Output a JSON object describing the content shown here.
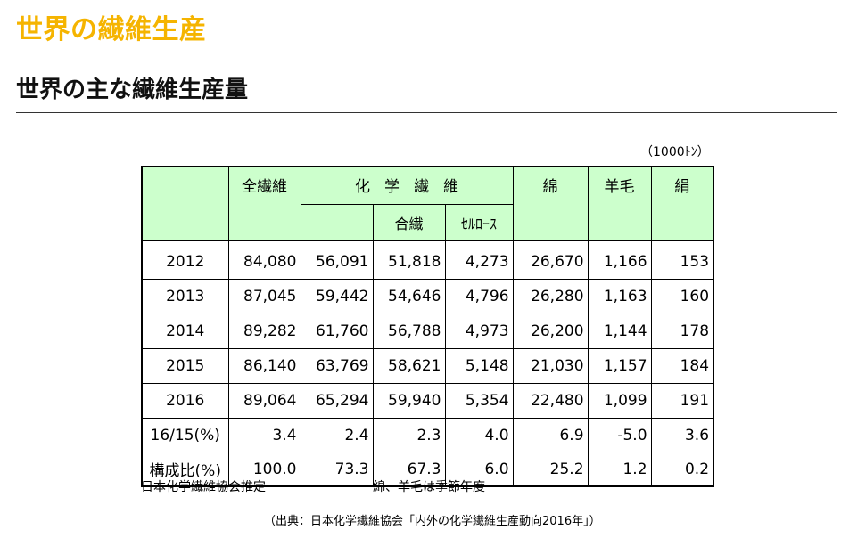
{
  "page": {
    "title": "世界の繊維生産",
    "section_title": "世界の主な繊維生産量",
    "unit": "（1000ﾄﾝ）"
  },
  "table": {
    "headers": {
      "total": "全繊維",
      "chemical": "化学繊維",
      "synthetic": "合繊",
      "cellulose": "ｾﾙﾛｰｽ",
      "cotton": "綿",
      "wool": "羊毛",
      "silk": "絹"
    },
    "rows": [
      {
        "year": "2012",
        "total": "84,080",
        "chemical": "56,091",
        "synthetic": "51,818",
        "cellulose": "4,273",
        "cotton": "26,670",
        "wool": "1,166",
        "silk": "153"
      },
      {
        "year": "2013",
        "total": "87,045",
        "chemical": "59,442",
        "synthetic": "54,646",
        "cellulose": "4,796",
        "cotton": "26,280",
        "wool": "1,163",
        "silk": "160"
      },
      {
        "year": "2014",
        "total": "89,282",
        "chemical": "61,760",
        "synthetic": "56,788",
        "cellulose": "4,973",
        "cotton": "26,200",
        "wool": "1,144",
        "silk": "178"
      },
      {
        "year": "2015",
        "total": "86,140",
        "chemical": "63,769",
        "synthetic": "58,621",
        "cellulose": "5,148",
        "cotton": "21,030",
        "wool": "1,157",
        "silk": "184"
      },
      {
        "year": "2016",
        "total": "89,064",
        "chemical": "65,294",
        "synthetic": "59,940",
        "cellulose": "5,354",
        "cotton": "22,480",
        "wool": "1,099",
        "silk": "191"
      }
    ],
    "growth": {
      "label": "16/15(%)",
      "total": "3.4",
      "chemical": "2.4",
      "synthetic": "2.3",
      "cellulose": "4.0",
      "cotton": "6.9",
      "wool": "-5.0",
      "silk": "3.6"
    },
    "share": {
      "label": "構成比(%)",
      "total": "100.0",
      "chemical": "73.3",
      "synthetic": "67.3",
      "cellulose": "6.0",
      "cotton": "25.2",
      "wool": "1.2",
      "silk": "0.2"
    }
  },
  "notes": {
    "left": "日本化学繊維協会推定",
    "right": "綿、羊毛は季節年度",
    "source": "（出典：日本化学繊維協会「内外の化学繊維生産動向2016年」）"
  }
}
